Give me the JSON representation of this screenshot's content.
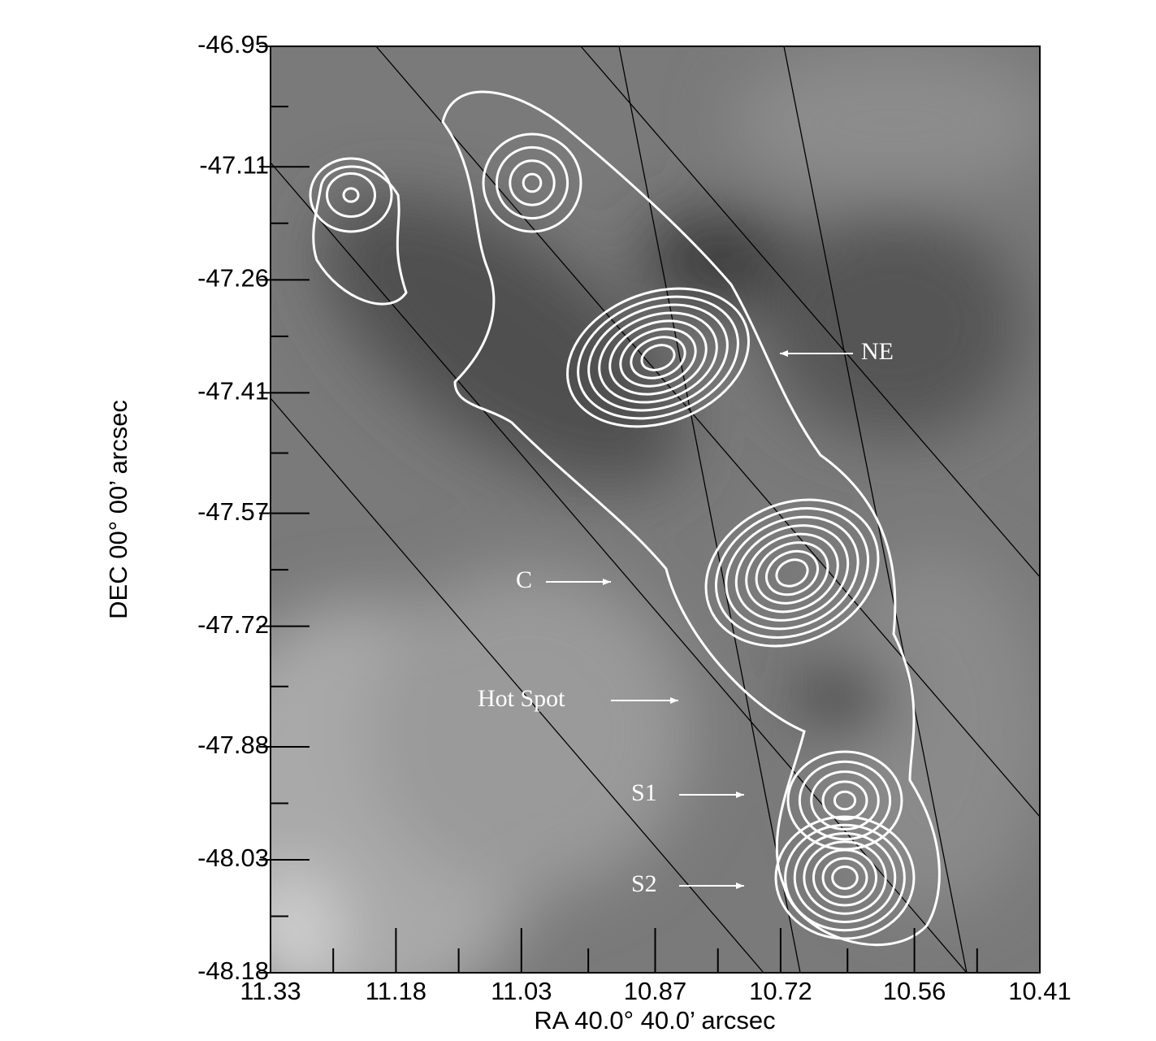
{
  "chart_data": {
    "type": "image",
    "xlabel": "RA 40.0° 40.0’ arcsec",
    "ylabel": "DEC 00° 00’ arcsec",
    "xlim": [
      11.33,
      10.41
    ],
    "xticks": [
      11.33,
      11.18,
      11.03,
      10.87,
      10.72,
      10.56,
      10.41
    ],
    "ylim": [
      -48.18,
      -46.95
    ],
    "yticks": [
      -46.95,
      -47.11,
      -47.26,
      -47.41,
      -47.57,
      -47.72,
      -47.88,
      -48.03,
      -48.18
    ],
    "annotations": [
      "NE",
      "C",
      "Hot Spot",
      "S1",
      "S2"
    ]
  }
}
